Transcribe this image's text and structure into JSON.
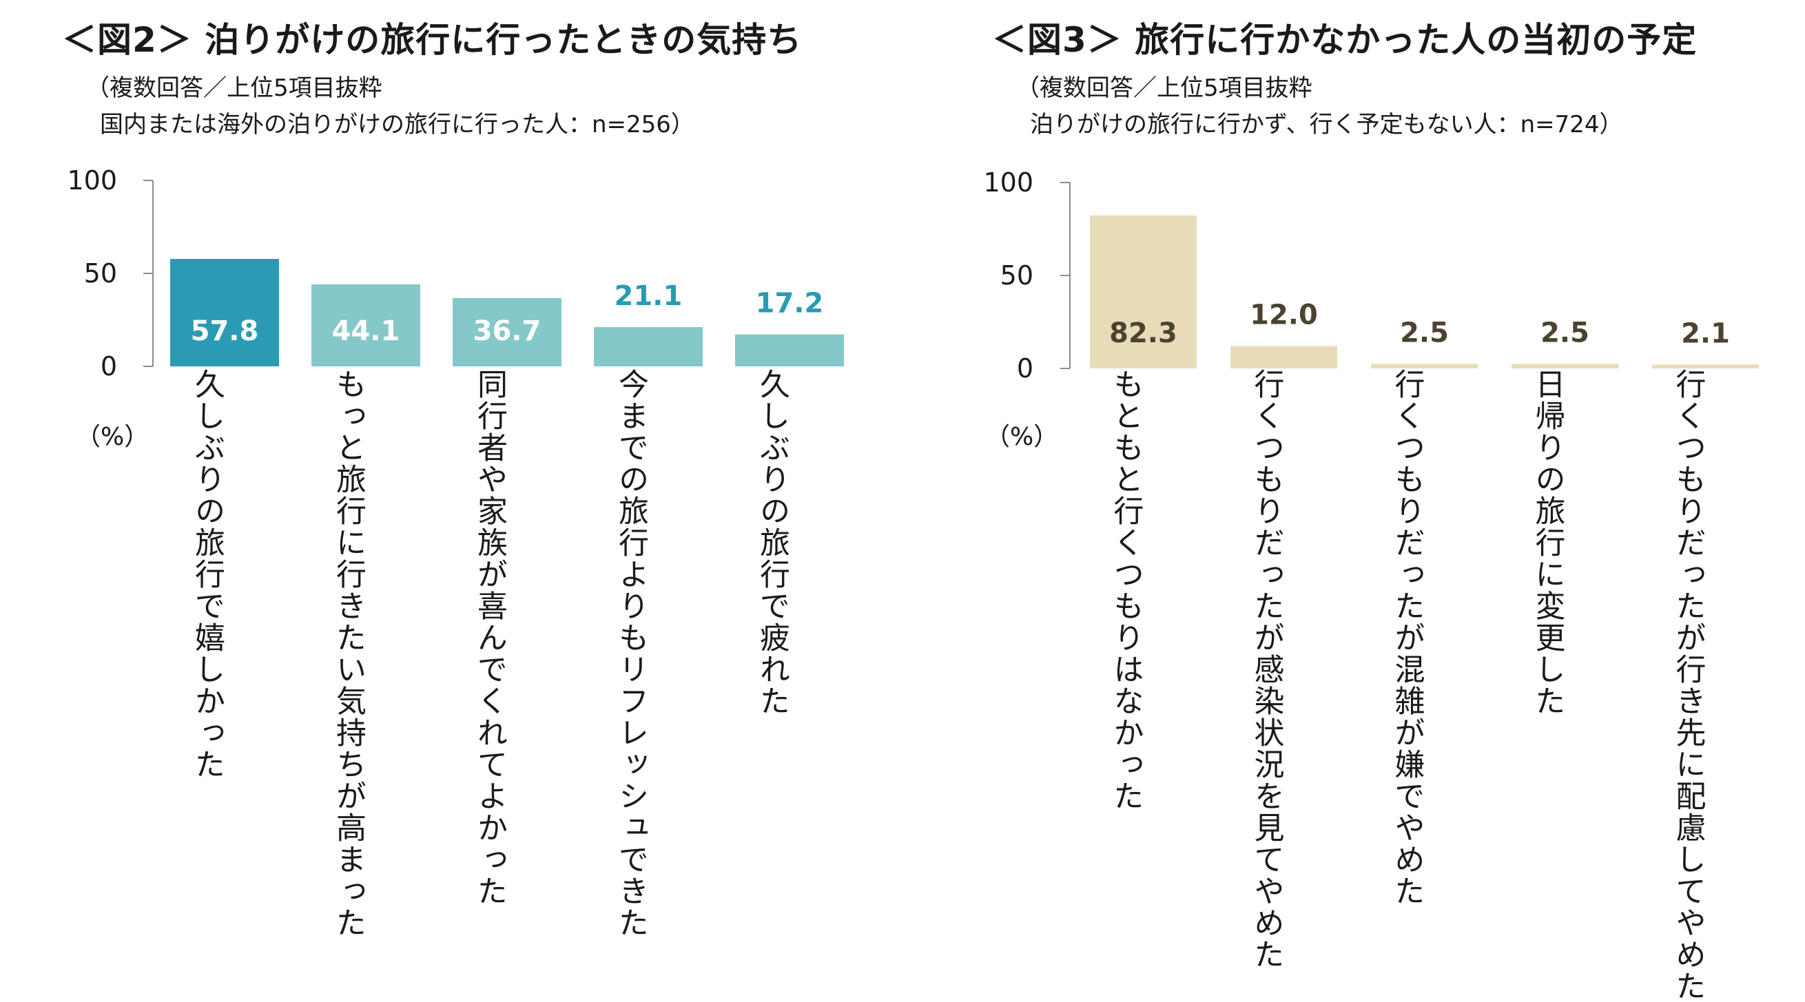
{
  "charts": [
    {
      "title": "＜図2＞ 泊りがけの旅行に行ったときの気持ち",
      "note_line1": "（複数回答／上位5項目抜粋",
      "note_line2": "国内または海外の泊りがけの旅行に行った人：n=256）",
      "unit_label": "（%）"
    },
    {
      "title": "＜図3＞ 旅行に行かなかった人の当初の予定",
      "note_line1": "（複数回答／上位5項目抜粋",
      "note_line2": "泊りがけの旅行に行かず、行く予定もない人：n=724）",
      "unit_label": "（%）"
    }
  ],
  "chart_data": [
    {
      "type": "bar",
      "title": "＜図2＞ 泊りがけの旅行に行ったときの気持ち",
      "categories": [
        "久しぶりの旅行で嬉しかった",
        "もっと旅行に行きたい気持ちが高まった",
        "同行者や家族が喜んでくれてよかった",
        "今までの旅行よりもリフレッシュできた",
        "久しぶりの旅行で疲れた"
      ],
      "values": [
        57.8,
        44.1,
        36.7,
        21.1,
        17.2
      ],
      "value_labels": [
        "57.8",
        "44.1",
        "36.7",
        "21.1",
        "17.2"
      ],
      "colors": [
        "#2a9bb3",
        "#84c8ca",
        "#84c8ca",
        "#84c8ca",
        "#84c8ca"
      ],
      "label_inside": [
        true,
        true,
        true,
        false,
        false
      ],
      "inside_label_color": "#ffffff",
      "outside_label_color": "#2a9bb3",
      "yticks": [
        0,
        50,
        100
      ],
      "ytick_labels": [
        "0",
        "50",
        "100"
      ],
      "ylim": [
        0,
        100
      ],
      "xlabel": "",
      "ylabel": "（%）"
    },
    {
      "type": "bar",
      "title": "＜図3＞ 旅行に行かなかった人の当初の予定",
      "categories": [
        "もともと行くつもりはなかった",
        "行くつもりだったが感染状況を見てやめた",
        "行くつもりだったが混雑が嫌でやめた",
        "日帰りの旅行に変更した",
        "行くつもりだったが行き先に配慮してやめた"
      ],
      "values": [
        82.3,
        12.0,
        2.5,
        2.5,
        2.1
      ],
      "value_labels": [
        "82.3",
        "12.0",
        "2.5",
        "2.5",
        "2.1"
      ],
      "colors": [
        "#e8dcb8",
        "#e8dcb8",
        "#e8dcb8",
        "#e8dcb8",
        "#e8dcb8"
      ],
      "label_inside": [
        true,
        false,
        false,
        false,
        false
      ],
      "inside_label_color": "#4a4330",
      "outside_label_color": "#4a4330",
      "yticks": [
        0,
        50,
        100
      ],
      "ytick_labels": [
        "0",
        "50",
        "100"
      ],
      "ylim": [
        0,
        100
      ],
      "xlabel": "",
      "ylabel": "（%）"
    }
  ]
}
